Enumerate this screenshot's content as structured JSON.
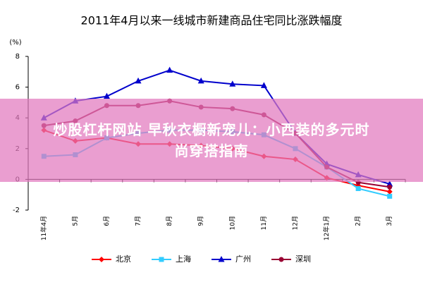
{
  "chart_data": {
    "type": "line",
    "title": "2011年4月以来一线城市新建商品住宅同比涨跌幅度",
    "y_label": "(%)",
    "categories": [
      "11年4月",
      "5月",
      "6月",
      "7月",
      "8月",
      "9月",
      "10月",
      "11月",
      "12月",
      "12年1月",
      "2月",
      "3月"
    ],
    "series": [
      {
        "name": "北京",
        "color": "#ff0000",
        "marker": "diamond",
        "values": [
          3.2,
          2.5,
          2.7,
          2.3,
          2.3,
          2.2,
          2.0,
          1.5,
          1.3,
          0.1,
          -0.4,
          -0.8
        ]
      },
      {
        "name": "上海",
        "color": "#33ccff",
        "marker": "square",
        "values": [
          1.5,
          1.6,
          2.7,
          3.0,
          3.2,
          3.2,
          3.1,
          2.9,
          2.0,
          0.8,
          -0.6,
          -1.1
        ]
      },
      {
        "name": "广州",
        "color": "#0000cc",
        "marker": "triangle",
        "values": [
          4.0,
          5.1,
          5.4,
          6.4,
          7.1,
          6.4,
          6.2,
          6.1,
          3.0,
          1.0,
          0.3,
          -0.3
        ]
      },
      {
        "name": "深圳",
        "color": "#990033",
        "marker": "circle",
        "values": [
          3.5,
          3.8,
          4.8,
          4.8,
          5.1,
          4.7,
          4.6,
          4.2,
          3.0,
          0.8,
          -0.2,
          -0.5
        ]
      }
    ],
    "ylim": [
      -2,
      8
    ],
    "yticks": [
      -2,
      0,
      2,
      4,
      6,
      8
    ],
    "legend": "bottom"
  },
  "overlay": {
    "lines": [
      "炒股杠杆网站 早秋衣橱新宠儿：小西装的多元时",
      "尚穿搭指南"
    ]
  }
}
